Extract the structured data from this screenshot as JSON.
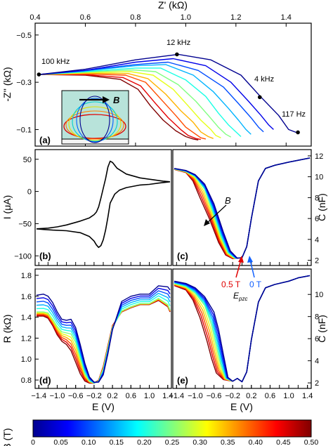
{
  "chart_data": [
    {
      "panel": "(a)",
      "type": "line",
      "xlabel": "Z' (kΩ)",
      "ylabel": "-Z'' (kΩ)",
      "xlim": [
        0.4,
        1.5
      ],
      "ylim": [
        -0.55,
        -0.03
      ],
      "y_reversed": true,
      "x_axis_position": "top",
      "xticks": [
        0.4,
        0.6,
        0.8,
        1.0,
        1.2,
        1.4
      ],
      "yticks": [
        -0.5,
        -0.3,
        -0.1
      ],
      "annotations": [
        {
          "text": "100 kHz",
          "x": 0.415,
          "y": -0.333
        },
        {
          "text": "12 kHz",
          "x": 0.965,
          "y": -0.418
        },
        {
          "text": "4 kHz",
          "x": 1.295,
          "y": -0.237
        },
        {
          "text": "117 Hz",
          "x": 1.447,
          "y": -0.088
        }
      ],
      "inset_label": "B",
      "series": [
        {
          "field_T": 0.0,
          "x": [
            0.42,
            0.6,
            0.8,
            0.97,
            1.1,
            1.22,
            1.3,
            1.37,
            1.41,
            1.44
          ],
          "y": [
            -0.333,
            -0.355,
            -0.395,
            -0.418,
            -0.395,
            -0.33,
            -0.237,
            -0.16,
            -0.1,
            -0.088
          ]
        },
        {
          "field_T": 0.05,
          "x": [
            0.42,
            0.6,
            0.8,
            0.95,
            1.08,
            1.18,
            1.25,
            1.3,
            1.33,
            1.35
          ],
          "y": [
            -0.333,
            -0.35,
            -0.385,
            -0.4,
            -0.37,
            -0.3,
            -0.22,
            -0.16,
            -0.12,
            -0.1
          ]
        },
        {
          "field_T": 0.1,
          "x": [
            0.42,
            0.6,
            0.8,
            0.93,
            1.05,
            1.15,
            1.21,
            1.26,
            1.29,
            1.31
          ],
          "y": [
            -0.333,
            -0.35,
            -0.375,
            -0.385,
            -0.35,
            -0.28,
            -0.21,
            -0.15,
            -0.11,
            -0.09
          ]
        },
        {
          "field_T": 0.15,
          "x": [
            0.42,
            0.6,
            0.8,
            0.92,
            1.03,
            1.11,
            1.17,
            1.21,
            1.24,
            1.26
          ],
          "y": [
            -0.333,
            -0.348,
            -0.37,
            -0.375,
            -0.33,
            -0.26,
            -0.19,
            -0.14,
            -0.1,
            -0.08
          ]
        },
        {
          "field_T": 0.2,
          "x": [
            0.42,
            0.6,
            0.8,
            0.9,
            1.0,
            1.08,
            1.13,
            1.17,
            1.2,
            1.22
          ],
          "y": [
            -0.333,
            -0.345,
            -0.36,
            -0.36,
            -0.31,
            -0.24,
            -0.17,
            -0.12,
            -0.09,
            -0.07
          ]
        },
        {
          "field_T": 0.25,
          "x": [
            0.42,
            0.6,
            0.79,
            0.88,
            0.97,
            1.04,
            1.09,
            1.13,
            1.16,
            1.18
          ],
          "y": [
            -0.333,
            -0.343,
            -0.352,
            -0.345,
            -0.29,
            -0.22,
            -0.16,
            -0.11,
            -0.08,
            -0.068
          ]
        },
        {
          "field_T": 0.3,
          "x": [
            0.42,
            0.6,
            0.78,
            0.87,
            0.95,
            1.01,
            1.06,
            1.1,
            1.12,
            1.14
          ],
          "y": [
            -0.333,
            -0.34,
            -0.345,
            -0.33,
            -0.27,
            -0.2,
            -0.14,
            -0.1,
            -0.075,
            -0.065
          ]
        },
        {
          "field_T": 0.35,
          "x": [
            0.42,
            0.6,
            0.77,
            0.85,
            0.92,
            0.98,
            1.03,
            1.06,
            1.09,
            1.11
          ],
          "y": [
            -0.333,
            -0.338,
            -0.337,
            -0.315,
            -0.25,
            -0.18,
            -0.13,
            -0.09,
            -0.07,
            -0.062
          ]
        },
        {
          "field_T": 0.4,
          "x": [
            0.42,
            0.6,
            0.76,
            0.84,
            0.9,
            0.96,
            1.0,
            1.04,
            1.06,
            1.08
          ],
          "y": [
            -0.333,
            -0.335,
            -0.33,
            -0.3,
            -0.23,
            -0.16,
            -0.11,
            -0.08,
            -0.065,
            -0.06
          ]
        },
        {
          "field_T": 0.45,
          "x": [
            0.42,
            0.6,
            0.75,
            0.82,
            0.88,
            0.93,
            0.98,
            1.01,
            1.04,
            1.06
          ],
          "y": [
            -0.333,
            -0.332,
            -0.32,
            -0.285,
            -0.21,
            -0.15,
            -0.1,
            -0.075,
            -0.062,
            -0.058
          ]
        },
        {
          "field_T": 0.5,
          "x": [
            0.42,
            0.6,
            0.74,
            0.81,
            0.86,
            0.91,
            0.96,
            1.0,
            1.03,
            1.05
          ],
          "y": [
            -0.333,
            -0.33,
            -0.312,
            -0.27,
            -0.2,
            -0.14,
            -0.095,
            -0.07,
            -0.06,
            -0.056
          ]
        }
      ]
    },
    {
      "panel": "(b)",
      "type": "line",
      "xlabel": "",
      "ylabel": "I (μA)",
      "xlim": [
        -1.48,
        1.48
      ],
      "ylim": [
        -115,
        65
      ],
      "yticks": [
        50,
        0,
        -50,
        -100
      ],
      "series": [
        {
          "name": "",
          "x": [
            -1.45,
            -1.2,
            -1.0,
            -0.8,
            -0.5,
            -0.3,
            -0.2,
            -0.15,
            -0.1,
            -0.05,
            0.0,
            0.05,
            0.1,
            0.15,
            0.2,
            0.3,
            0.5,
            0.8,
            1.1,
            1.3,
            1.45
          ],
          "y": [
            -58,
            -57,
            -55,
            -52,
            -46,
            -41,
            -36,
            -32,
            -24,
            -10,
            5,
            20,
            38,
            47,
            45,
            36,
            27,
            21,
            18,
            16,
            15
          ]
        },
        {
          "name": "",
          "x": [
            1.45,
            1.2,
            1.0,
            0.8,
            0.5,
            0.35,
            0.25,
            0.15,
            0.1,
            0.05,
            0.0,
            -0.05,
            -0.1,
            -0.15,
            -0.2,
            -0.3,
            -0.5,
            -0.8,
            -1.1,
            -1.3,
            -1.45
          ],
          "y": [
            15,
            13,
            11,
            10,
            6,
            2,
            -4,
            -18,
            -40,
            -60,
            -75,
            -84,
            -87,
            -83,
            -77,
            -70,
            -64,
            -61,
            -60,
            -59,
            -58
          ]
        }
      ]
    },
    {
      "panel": "(c)",
      "type": "line",
      "ylabel": "C (nF)",
      "xlim": [
        -1.48,
        1.48
      ],
      "ylim": [
        1.5,
        12.6
      ],
      "yticks": [
        2,
        4,
        6,
        8,
        10,
        12
      ],
      "y_axis_position": "right",
      "annotations": [
        {
          "text": "B",
          "x": -0.95,
          "y": 7.5
        },
        {
          "text": "0.5 T",
          "x": -1.0,
          "y": 1.5
        },
        {
          "text": "0 T",
          "x": 0.05,
          "y": 1.5
        },
        {
          "text": "E_pzc",
          "x": -0.45,
          "y": 1.5
        }
      ],
      "series": [
        {
          "field_T": 0.0,
          "x": [
            -1.45,
            -1.2,
            -1.0,
            -0.8,
            -0.6,
            -0.4,
            -0.25,
            -0.1,
            0.0,
            0.1,
            0.2,
            0.35,
            0.5,
            0.7,
            1.0,
            1.45
          ],
          "y": [
            10.8,
            10.6,
            10.2,
            9.3,
            7.4,
            4.7,
            2.9,
            2.2,
            2.25,
            3.3,
            6.0,
            9.6,
            10.8,
            11.1,
            11.4,
            11.8
          ]
        },
        {
          "field_T": 0.25,
          "x": [
            -1.45,
            -1.2,
            -1.0,
            -0.8,
            -0.65,
            -0.45,
            -0.3,
            -0.15,
            0.0,
            0.1,
            0.2,
            0.35,
            0.5,
            0.7,
            1.0,
            1.45
          ],
          "y": [
            10.75,
            10.5,
            10.0,
            8.8,
            6.9,
            4.2,
            2.7,
            2.2,
            2.25,
            3.3,
            6.0,
            9.6,
            10.8,
            11.1,
            11.4,
            11.8
          ]
        },
        {
          "field_T": 0.5,
          "x": [
            -1.45,
            -1.2,
            -1.05,
            -0.9,
            -0.7,
            -0.5,
            -0.35,
            -0.2,
            0.0,
            0.1,
            0.2,
            0.35,
            0.5,
            0.7,
            1.0,
            1.45
          ],
          "y": [
            10.7,
            10.4,
            9.6,
            8.0,
            6.0,
            3.7,
            2.5,
            2.15,
            2.25,
            3.3,
            6.0,
            9.6,
            10.8,
            11.1,
            11.4,
            11.8
          ]
        }
      ]
    },
    {
      "panel": "(d)",
      "type": "line",
      "xlabel": "E (V)",
      "ylabel": "R (kΩ)",
      "xlim": [
        -1.48,
        1.48
      ],
      "ylim": [
        0.72,
        1.86
      ],
      "xticks": [
        -1.4,
        -1.2,
        -1.0,
        -0.8,
        -0.6,
        -0.4,
        -0.2,
        0.0,
        0.2,
        0.4,
        0.6,
        0.8,
        1.0,
        1.2,
        1.4
      ],
      "yticks": [
        0.8,
        1.0,
        1.2,
        1.4,
        1.6,
        1.8
      ],
      "series": [
        {
          "field_T": 0.0,
          "x": [
            -1.45,
            -1.3,
            -1.2,
            -1.1,
            -1.0,
            -0.9,
            -0.8,
            -0.7,
            -0.6,
            -0.5,
            -0.4,
            -0.3,
            -0.2,
            -0.1,
            0.0,
            0.1,
            0.2,
            0.4,
            0.6,
            0.8,
            1.0,
            1.2,
            1.4,
            1.45
          ],
          "y": [
            1.61,
            1.62,
            1.6,
            1.54,
            1.45,
            1.38,
            1.37,
            1.38,
            1.3,
            1.14,
            0.96,
            0.83,
            0.78,
            0.78,
            0.85,
            1.05,
            1.28,
            1.55,
            1.6,
            1.62,
            1.62,
            1.7,
            1.69,
            1.66
          ]
        },
        {
          "field_T": 0.25,
          "x": [
            -1.45,
            -1.3,
            -1.2,
            -1.1,
            -1.0,
            -0.9,
            -0.8,
            -0.7,
            -0.6,
            -0.5,
            -0.4,
            -0.3,
            -0.2,
            -0.1,
            0.0,
            0.1,
            0.2,
            0.4,
            0.6,
            0.8,
            1.0,
            1.2,
            1.4,
            1.45
          ],
          "y": [
            1.45,
            1.45,
            1.44,
            1.38,
            1.31,
            1.26,
            1.25,
            1.24,
            1.16,
            1.01,
            0.86,
            0.79,
            0.77,
            0.79,
            0.9,
            1.1,
            1.3,
            1.46,
            1.5,
            1.53,
            1.53,
            1.58,
            1.52,
            1.47
          ]
        },
        {
          "field_T": 0.5,
          "x": [
            -1.45,
            -1.3,
            -1.2,
            -1.1,
            -1.0,
            -0.9,
            -0.8,
            -0.7,
            -0.6,
            -0.5,
            -0.4,
            -0.3,
            -0.2,
            -0.1,
            0.0,
            0.1,
            0.2,
            0.4,
            0.6,
            0.8,
            1.0,
            1.2,
            1.4,
            1.45
          ],
          "y": [
            1.41,
            1.41,
            1.39,
            1.32,
            1.23,
            1.17,
            1.14,
            1.08,
            0.97,
            0.86,
            0.79,
            0.77,
            0.77,
            0.8,
            0.93,
            1.13,
            1.32,
            1.45,
            1.49,
            1.52,
            1.52,
            1.56,
            1.5,
            1.45
          ]
        }
      ]
    },
    {
      "panel": "(e)",
      "type": "line",
      "xlabel": "E (V)",
      "ylabel": "C (nF)",
      "xlim": [
        -1.48,
        1.48
      ],
      "ylim": [
        1.5,
        12.3
      ],
      "xticks": [
        -1.4,
        -1.2,
        -1.0,
        -0.8,
        -0.6,
        -0.4,
        -0.2,
        0.0,
        0.2,
        0.4,
        0.6,
        0.8,
        1.0,
        1.2,
        1.4
      ],
      "yticks": [
        2,
        4,
        6,
        8,
        10
      ],
      "y_axis_position": "right",
      "series": [
        {
          "field_T": 0.0,
          "x": [
            -1.45,
            -1.2,
            -1.0,
            -0.8,
            -0.6,
            -0.5,
            -0.4,
            -0.3,
            -0.2,
            -0.1,
            0.0,
            0.1,
            0.2,
            0.35,
            0.5,
            0.7,
            1.0,
            1.2,
            1.45
          ],
          "y": [
            11.2,
            11.0,
            10.6,
            9.8,
            8.4,
            6.8,
            4.6,
            2.5,
            2.15,
            2.4,
            2.1,
            3.0,
            5.9,
            9.3,
            10.6,
            10.9,
            11.2,
            11.5,
            11.7
          ]
        },
        {
          "field_T": 0.25,
          "x": [
            -1.45,
            -1.2,
            -1.0,
            -0.8,
            -0.65,
            -0.55,
            -0.45,
            -0.35,
            -0.2,
            -0.1,
            0.0,
            0.1,
            0.2,
            0.35,
            0.5,
            0.7,
            1.0,
            1.2,
            1.45
          ],
          "y": [
            11.0,
            10.7,
            10.1,
            9.0,
            7.2,
            5.3,
            3.5,
            2.4,
            2.15,
            2.4,
            2.1,
            3.0,
            5.9,
            9.3,
            10.6,
            10.9,
            11.2,
            11.5,
            11.7
          ]
        },
        {
          "field_T": 0.5,
          "x": [
            -1.45,
            -1.2,
            -1.05,
            -0.9,
            -0.75,
            -0.65,
            -0.55,
            -0.4,
            -0.2,
            -0.1,
            0.0,
            0.1,
            0.2,
            0.35,
            0.5,
            0.7,
            1.0,
            1.2,
            1.45
          ],
          "y": [
            10.8,
            10.4,
            9.5,
            7.9,
            5.8,
            4.2,
            2.9,
            2.3,
            2.15,
            2.4,
            2.1,
            3.0,
            5.9,
            9.3,
            10.6,
            10.9,
            11.2,
            11.5,
            11.7
          ]
        }
      ]
    },
    {
      "panel": "colorbar",
      "type": "heatmap",
      "xlabel": "",
      "ylabel": "B (T)",
      "range": [
        0,
        0.5
      ],
      "ticks": [
        "0",
        "0.05",
        "0.10",
        "0.15",
        "0.20",
        "0.25",
        "0.30",
        "0.35",
        "0.40",
        "0.45",
        "0.50"
      ],
      "colormap": [
        "#00008f",
        "#0000ff",
        "#0080ff",
        "#00ffff",
        "#80ff80",
        "#ffff00",
        "#ff8000",
        "#ff0000",
        "#800000"
      ]
    }
  ]
}
